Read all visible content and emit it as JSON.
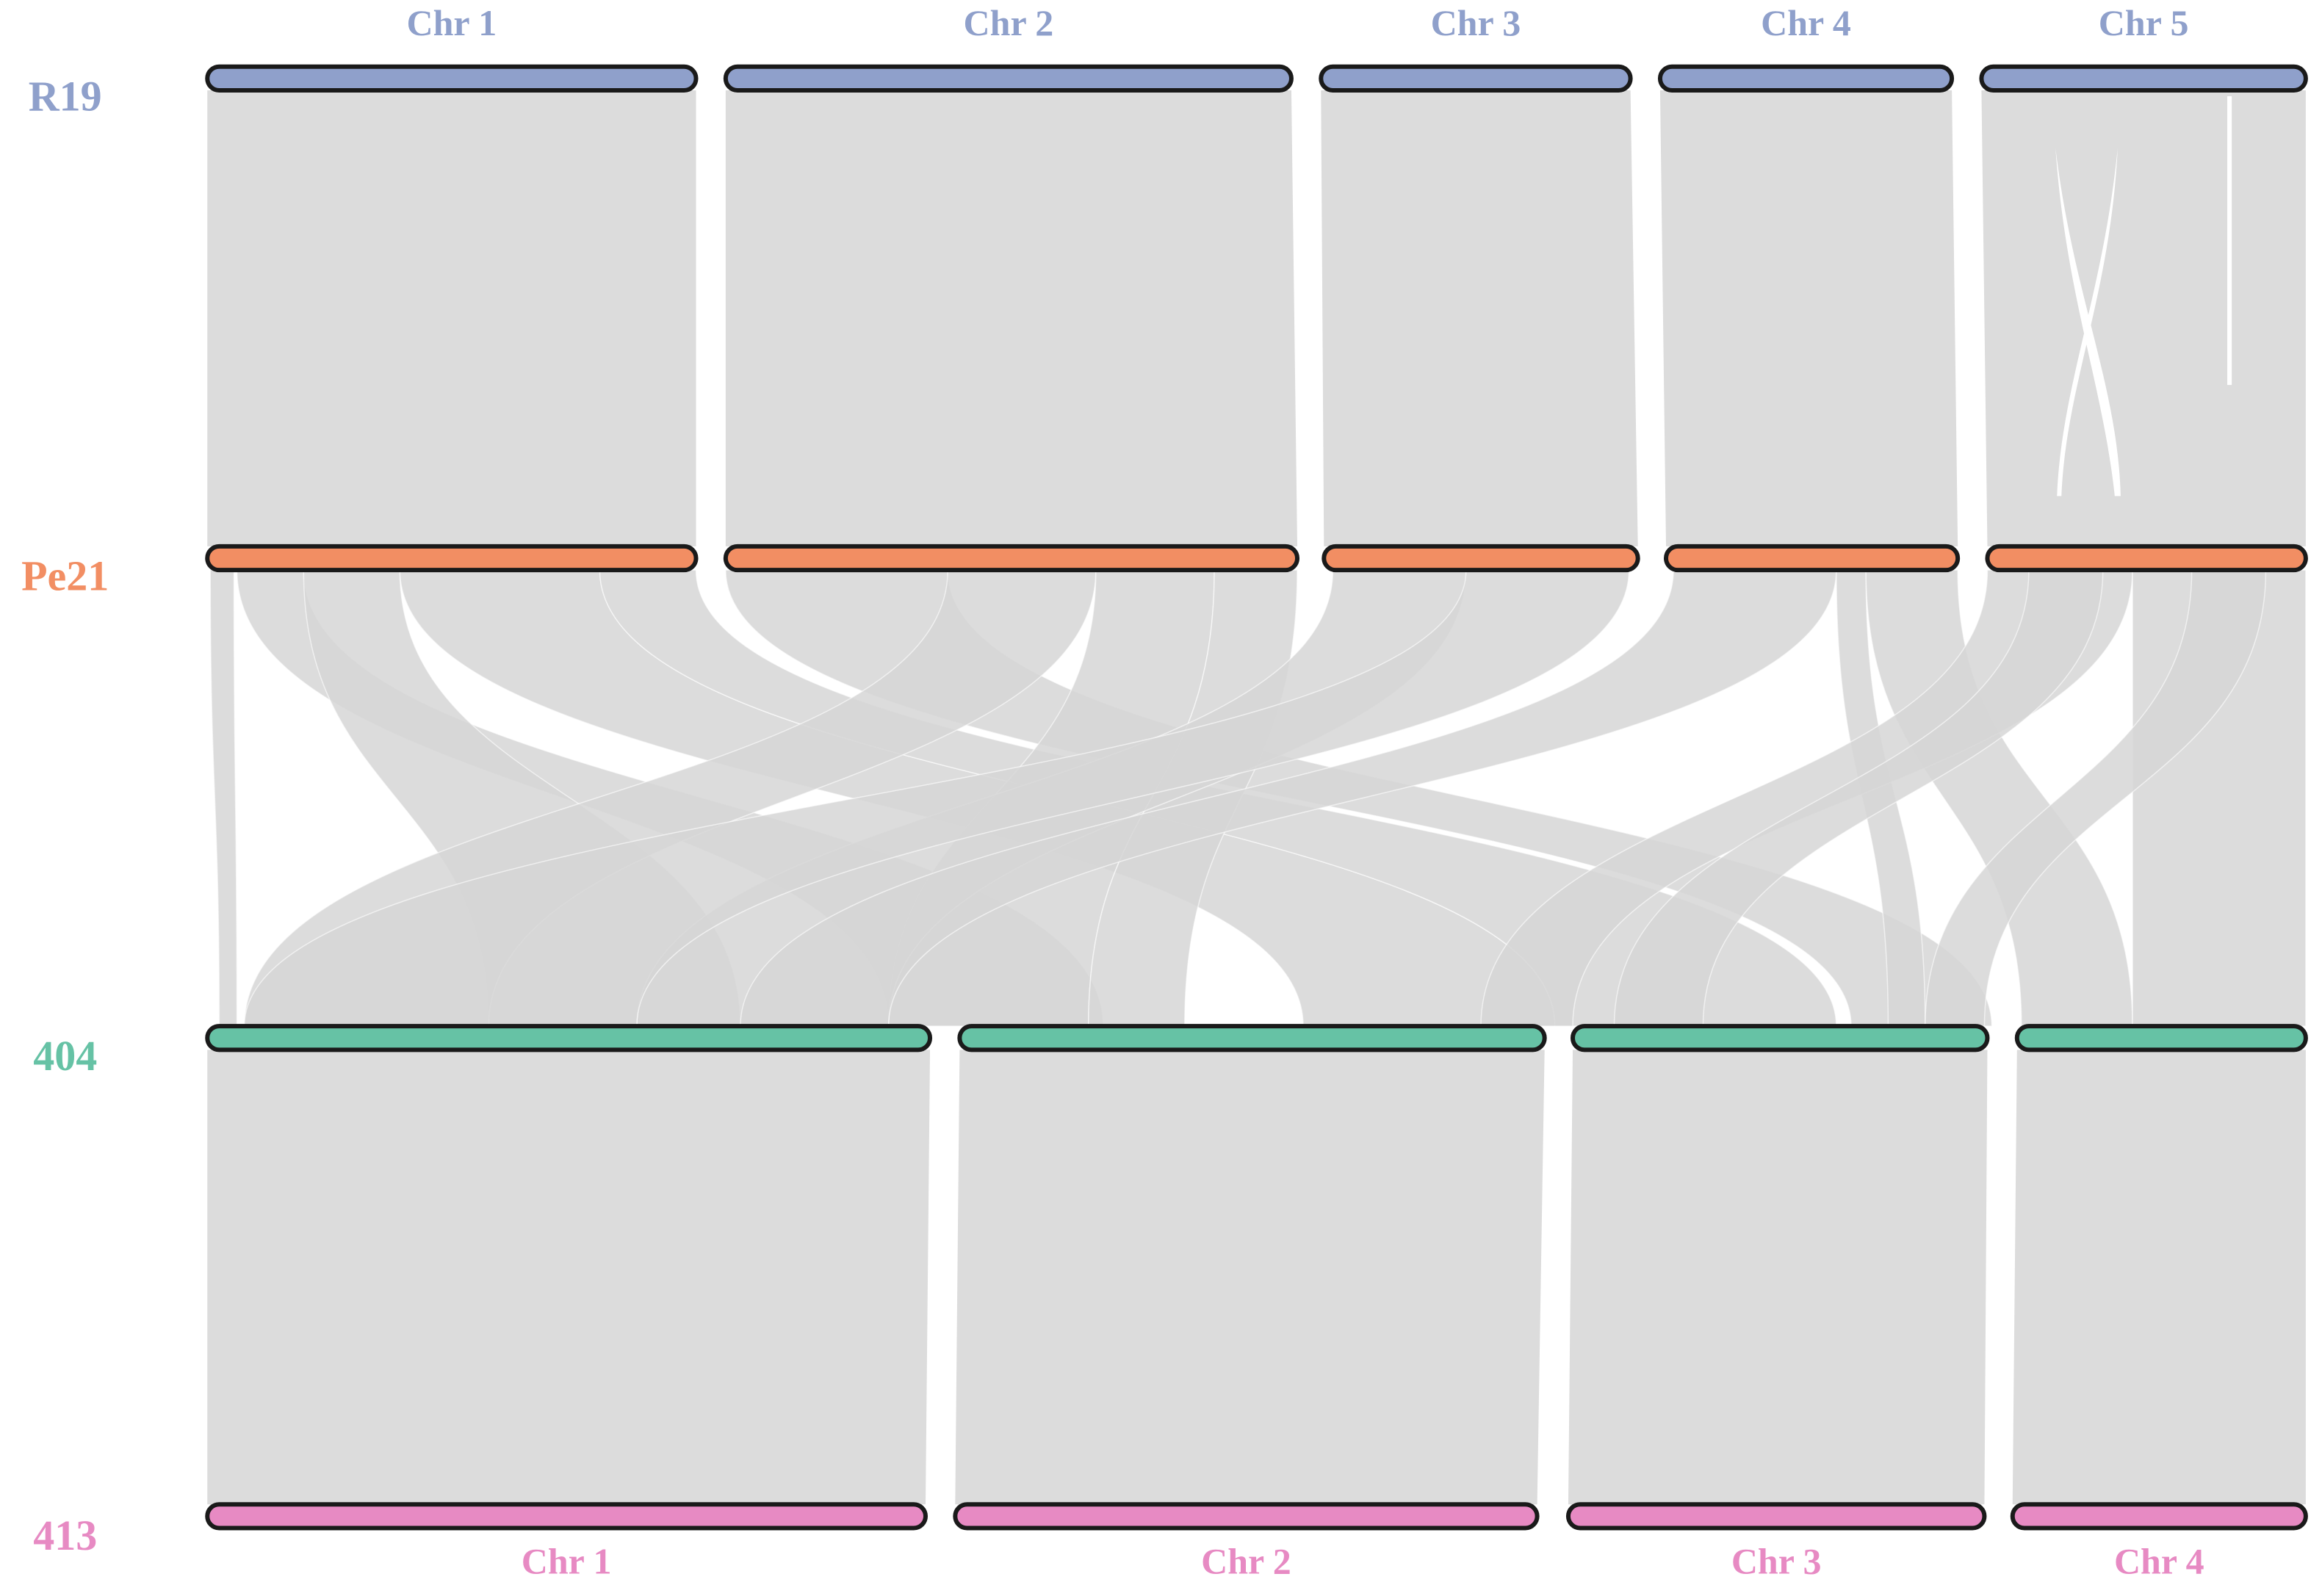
{
  "genomes": [
    {
      "name": "R19",
      "chromosome_labels": [
        "Chr 1",
        "Chr 2",
        "Chr 3",
        "Chr 4",
        "Chr 5"
      ]
    },
    {
      "name": "Pe21"
    },
    {
      "name": "404"
    },
    {
      "name": "413",
      "chromosome_labels": [
        "Chr 1",
        "Chr 2",
        "Chr 3",
        "Chr 4"
      ]
    }
  ]
}
